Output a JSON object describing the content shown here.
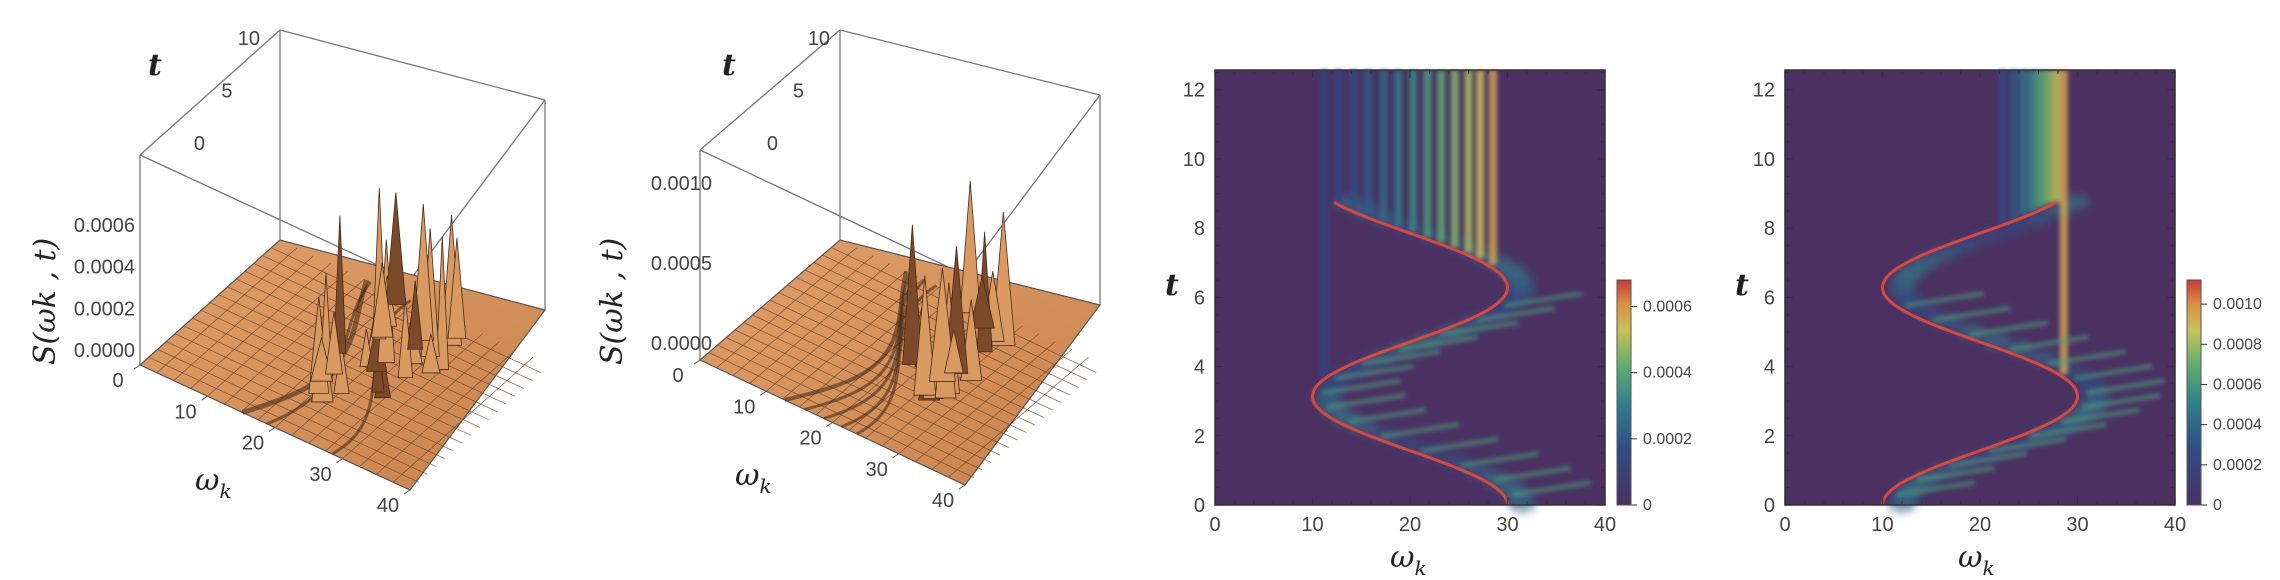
{
  "chart_data": [
    {
      "type": "surface3d",
      "xlabel": "ω",
      "xlabel_sub": "k",
      "ylabel": "t",
      "zlabel": "S(ωk , t)",
      "x_ticks": [
        "0",
        "10",
        "20",
        "30",
        "40"
      ],
      "y_ticks": [
        "0",
        "5",
        "10"
      ],
      "z_ticks": [
        "0.0000",
        "0.0002",
        "0.0004",
        "0.0006"
      ],
      "xlim": [
        0,
        40
      ],
      "ylim": [
        0,
        10
      ],
      "zlim": [
        0,
        0.0007
      ],
      "colors": {
        "surface": "#d4935a",
        "grid": "#5a3a22",
        "edge": "#333333"
      }
    },
    {
      "type": "surface3d",
      "xlabel": "ω",
      "xlabel_sub": "k",
      "ylabel": "t",
      "zlabel": "S(ωk , t)",
      "x_ticks": [
        "0",
        "10",
        "20",
        "30",
        "40"
      ],
      "y_ticks": [
        "0",
        "5",
        "10"
      ],
      "z_ticks": [
        "0.0000",
        "0.0005",
        "0.0010"
      ],
      "xlim": [
        0,
        40
      ],
      "ylim": [
        0,
        10
      ],
      "zlim": [
        0,
        0.0011
      ],
      "colors": {
        "surface": "#d4935a",
        "grid": "#5a3a22",
        "edge": "#333333"
      }
    },
    {
      "type": "heatmap",
      "xlabel": "ω",
      "xlabel_sub": "k",
      "ylabel": "t",
      "x_ticks": [
        0,
        10,
        20,
        30,
        40
      ],
      "y_ticks": [
        0,
        2,
        4,
        6,
        8,
        10,
        12
      ],
      "xlim": [
        0,
        40
      ],
      "ylim": [
        0,
        12.57
      ],
      "colorbar_ticks": [
        "0",
        "0.0002",
        "0.0004",
        "0.0006"
      ],
      "colorbar_values": [
        0,
        0.0002,
        0.0004,
        0.0006
      ],
      "colorbar_max": 0.00068,
      "curve": {
        "color": "#e0453a",
        "center": 20,
        "amplitude": 10,
        "phase": 0,
        "t_max": 8.75
      },
      "bright_lines": [
        28.5,
        27.2,
        26.0,
        24.6,
        23.2,
        21.8,
        20.3,
        18.8,
        17.3,
        15.7,
        14.2,
        12.7,
        11.2
      ],
      "colors": {
        "low": "#4a3162",
        "mid": "#2d6e8f",
        "high": "#d93f2f"
      }
    },
    {
      "type": "heatmap",
      "xlabel": "ω",
      "xlabel_sub": "k",
      "ylabel": "t",
      "x_ticks": [
        0,
        10,
        20,
        30,
        40
      ],
      "y_ticks": [
        0,
        2,
        4,
        6,
        8,
        10,
        12
      ],
      "xlim": [
        0,
        40
      ],
      "ylim": [
        0,
        12.57
      ],
      "colorbar_ticks": [
        "0",
        "0.0002",
        "0.0004",
        "0.0006",
        "0.0008",
        "0.0010"
      ],
      "colorbar_values": [
        0,
        0.0002,
        0.0004,
        0.0006,
        0.0008,
        0.001
      ],
      "colorbar_max": 0.00112,
      "curve": {
        "color": "#e0453a",
        "center": 20,
        "amplitude": 10,
        "phase": 3.14159,
        "t_max": 8.75
      },
      "bright_lines": [
        28.6,
        27.8,
        27.0,
        26.2,
        25.4,
        24.5,
        23.5,
        22.3
      ],
      "colors": {
        "low": "#4a3162",
        "mid": "#2d6e8f",
        "high": "#d93f2f"
      }
    }
  ]
}
